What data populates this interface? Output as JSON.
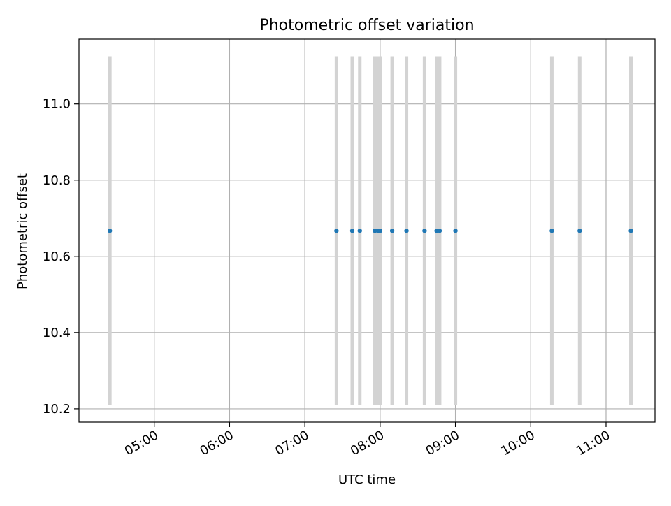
{
  "chart_data": {
    "type": "scatter",
    "title": "Photometric offset variation",
    "xlabel": "UTC time",
    "ylabel": "Photometric offset",
    "x_tick_labels": [
      "05:00",
      "06:00",
      "07:00",
      "08:00",
      "09:00",
      "10:00",
      "11:00"
    ],
    "y_tick_labels": [
      "10.2",
      "10.4",
      "10.6",
      "10.8",
      "11.0"
    ],
    "x_ticks_hours": [
      5,
      6,
      7,
      8,
      9,
      10,
      11
    ],
    "y_ticks": [
      10.2,
      10.4,
      10.6,
      10.8,
      11.0
    ],
    "xlim_hours": [
      4.0,
      11.65
    ],
    "ylim": [
      10.165,
      11.17
    ],
    "grid": true,
    "error_bar_range": [
      10.21,
      11.125
    ],
    "series": [
      {
        "x_hours": [
          4.41,
          7.42,
          7.63,
          7.73,
          7.93,
          7.97,
          8.0,
          8.16,
          8.35,
          8.59,
          8.75,
          8.79,
          9.0,
          10.28,
          10.65,
          11.33
        ],
        "y": [
          10.667,
          10.667,
          10.667,
          10.667,
          10.667,
          10.667,
          10.667,
          10.667,
          10.667,
          10.667,
          10.667,
          10.667,
          10.667,
          10.667,
          10.667,
          10.667
        ]
      }
    ],
    "colors": {
      "point": "#1f77b4",
      "error_bar": "#d3d3d3",
      "grid": "#b0b0b0",
      "axes": "#000000"
    }
  }
}
